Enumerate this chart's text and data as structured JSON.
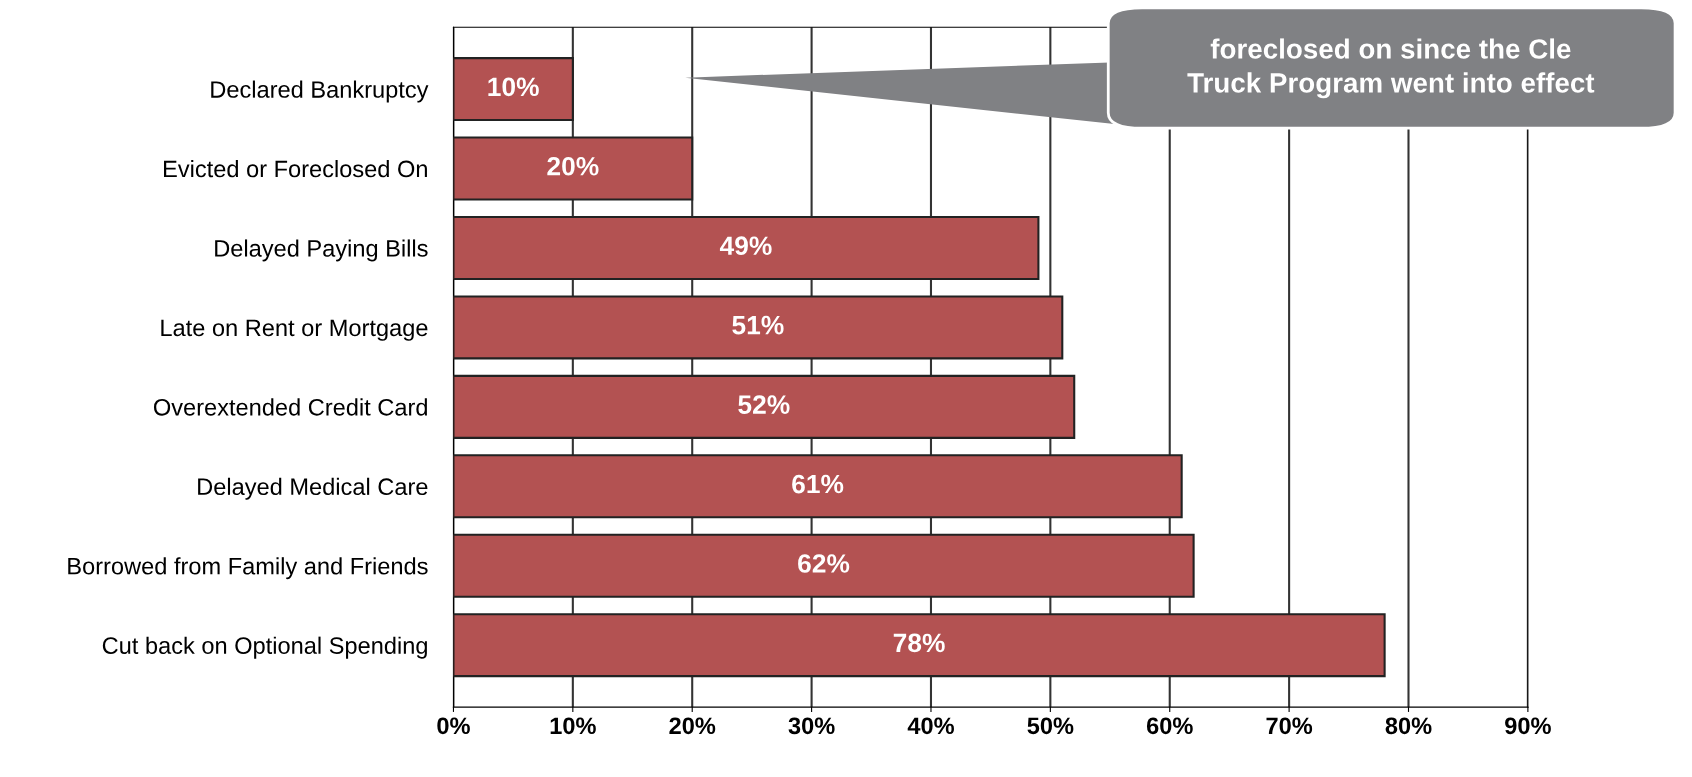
{
  "chart_data": {
    "type": "bar",
    "orientation": "horizontal",
    "categories": [
      "Declared Bankruptcy",
      "Evicted or Foreclosed On",
      "Delayed Paying Bills",
      "Late on Rent or Mortgage",
      "Overextended Credit Card",
      "Delayed Medical Care",
      "Borrowed from Family and Friends",
      "Cut back on Optional Spending"
    ],
    "values": [
      10,
      20,
      49,
      51,
      52,
      61,
      62,
      78
    ],
    "value_labels": [
      "10%",
      "20%",
      "49%",
      "51%",
      "52%",
      "61%",
      "62%",
      "78%"
    ],
    "color": "#b35252",
    "xlim": [
      0,
      90
    ],
    "xticks": [
      {
        "value": 0,
        "label": "0%"
      },
      {
        "value": 10,
        "label": "10%"
      },
      {
        "value": 20,
        "label": "20%"
      },
      {
        "value": 30,
        "label": "30%"
      },
      {
        "value": 40,
        "label": "40%"
      },
      {
        "value": 50,
        "label": "50%"
      },
      {
        "value": 60,
        "label": "60%"
      },
      {
        "value": 70,
        "label": "70%"
      },
      {
        "value": 80,
        "label": "80%"
      },
      {
        "value": 90,
        "label": "90%"
      }
    ],
    "grid": "x",
    "annotations": [
      "foreclosed on since the Cle\nTruck Program went into effect"
    ]
  }
}
